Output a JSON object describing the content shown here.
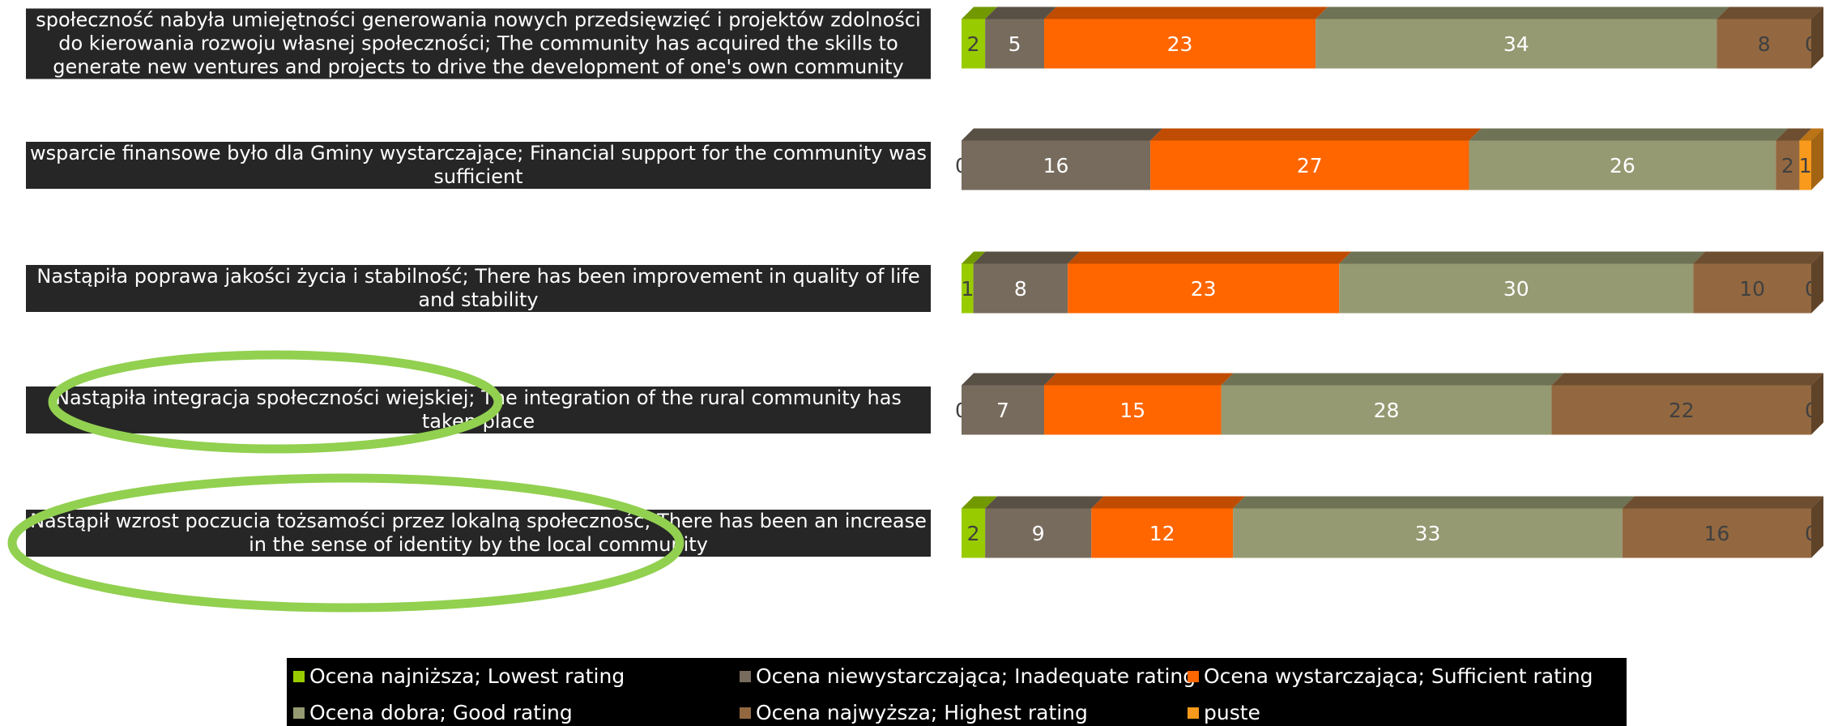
{
  "chart_data": {
    "type": "stacked-bar-horizontal",
    "categories": [
      "społeczność nabyła umiejętności generowania nowych przedsięwzięć i projektów zdolności do kierowania rozwoju własnej społeczności; The community has acquired the skills to generate new ventures and projects to drive the development of one's own community",
      "wsparcie finansowe było dla Gminy wystarczające; Financial support for the community was sufficient",
      "Nastąpiła poprawa jakości życia i stabilność; There has been improvement in quality of life and stability",
      "Nastąpiła integracja społeczności wiejskiej; The integration of the rural community has taken place",
      "Nastąpił wzrost poczucia tożsamości przez lokalną społeczność; There has been an increase in the sense of identity by the local community"
    ],
    "series": [
      {
        "name": "Ocena najniższa; Lowest rating",
        "color": "#99cc00",
        "values": [
          2,
          0,
          1,
          0,
          2
        ]
      },
      {
        "name": "Ocena niewystarczająca; Inadequate rating",
        "color": "#776b5d",
        "values": [
          5,
          16,
          8,
          7,
          9
        ]
      },
      {
        "name": "Ocena wystarczająca; Sufficient rating",
        "color": "#ff6600",
        "values": [
          23,
          27,
          23,
          15,
          12
        ]
      },
      {
        "name": "Ocena dobra; Good rating",
        "color": "#959a72",
        "values": [
          34,
          26,
          30,
          28,
          33
        ]
      },
      {
        "name": "Ocena najwyższa; Highest rating",
        "color": "#936840",
        "values": [
          8,
          2,
          10,
          22,
          16
        ]
      },
      {
        "name": "puste",
        "color": "#f99a1c",
        "values": [
          0,
          1,
          0,
          0,
          0
        ]
      }
    ],
    "legend": "bottom"
  }
}
